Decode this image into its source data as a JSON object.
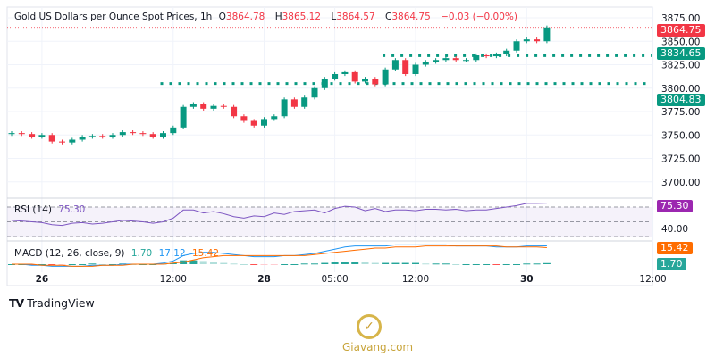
{
  "header": {
    "title": "Gold US Dollars per Ounce Spot Prices, 1h",
    "o_label": "O",
    "o": "3864.78",
    "h_label": "H",
    "h": "3865.12",
    "l_label": "L",
    "l": "3864.57",
    "c_label": "C",
    "c": "3864.75",
    "change": "−0.03 (−0.00%)"
  },
  "price_tags": {
    "last": "3864.75",
    "level1": "3834.65",
    "level2": "3804.83"
  },
  "rsi": {
    "label": "RSI (14)",
    "value": "75.30",
    "axis_label": "40.00"
  },
  "macd": {
    "label": "MACD (12, 26, close, 9)",
    "hist": "1.70",
    "macd": "17.12",
    "signal": "15.42"
  },
  "branding": {
    "tradingview": "TradingView",
    "watermark": "Giavang.com"
  },
  "colors": {
    "up": "#089981",
    "down": "#f23645",
    "rsi": "#7e57c2",
    "macd": "#2962ff",
    "signal": "#ff6d00"
  },
  "chart_data": {
    "type": "candlestick",
    "title": "Gold US Dollars per Ounce Spot Prices, 1h",
    "ylim": [
      3690,
      3880
    ],
    "yticks": [
      "3875.00",
      "3850.00",
      "3825.00",
      "3800.00",
      "3775.00",
      "3750.00",
      "3725.00",
      "3700.00"
    ],
    "ytick_values": [
      3875,
      3850,
      3825,
      3800,
      3775,
      3750,
      3725,
      3700
    ],
    "xticks": [
      "26",
      "12:00",
      "28",
      "05:00",
      "12:00",
      "30",
      "12:00"
    ],
    "xtick_index": [
      3,
      16,
      25,
      32,
      40,
      51,
      63.5
    ],
    "closes": [
      3752,
      3751,
      3748,
      3750,
      3743,
      3742,
      3745,
      3748,
      3749,
      3748,
      3750,
      3753,
      3752,
      3751,
      3748,
      3752,
      3758,
      3780,
      3783,
      3778,
      3781,
      3780,
      3770,
      3765,
      3760,
      3767,
      3770,
      3788,
      3780,
      3790,
      3800,
      3810,
      3815,
      3817,
      3807,
      3810,
      3804,
      3820,
      3830,
      3815,
      3825,
      3828,
      3830,
      3832,
      3830,
      3830,
      3835,
      3834,
      3836,
      3840,
      3850,
      3852,
      3850,
      3864.75
    ],
    "open_first": 3751,
    "levels": [
      {
        "value": 3834.65,
        "start_index": 37
      },
      {
        "value": 3804.83,
        "start_index": 15
      }
    ],
    "rsi_values": [
      52,
      51,
      50,
      49,
      46,
      45,
      48,
      49,
      47,
      48,
      50,
      52,
      51,
      50,
      48,
      50,
      55,
      66,
      66,
      62,
      64,
      61,
      57,
      55,
      58,
      57,
      62,
      60,
      64,
      65,
      66,
      62,
      68,
      71,
      70,
      65,
      68,
      64,
      66,
      66,
      65,
      67,
      67,
      66,
      67,
      65,
      66,
      66,
      68,
      70,
      72,
      75,
      75,
      75.3
    ],
    "rsi_levels": [
      70,
      50,
      30
    ],
    "macd_values": [
      0,
      0,
      -1,
      -1,
      -2,
      -2,
      -2,
      -2,
      -1,
      -1,
      -1,
      0,
      0,
      0,
      0,
      1,
      3,
      8,
      10,
      11,
      11,
      10,
      9,
      8,
      7,
      7,
      7,
      8,
      8,
      9,
      10,
      12,
      14,
      16,
      17,
      17,
      17,
      17,
      18,
      18,
      18,
      18,
      18,
      18,
      17,
      17,
      17,
      17,
      16,
      16,
      16,
      17,
      17,
      17.12
    ],
    "signal_values": [
      0,
      0,
      0,
      -1,
      -1,
      -1,
      -2,
      -2,
      -2,
      -1,
      -1,
      -1,
      0,
      0,
      0,
      0,
      1,
      2,
      4,
      6,
      7,
      8,
      8,
      8,
      8,
      8,
      8,
      8,
      8,
      8,
      9,
      10,
      11,
      12,
      13,
      14,
      15,
      15,
      16,
      16,
      16,
      17,
      17,
      17,
      17,
      17,
      17,
      17,
      17,
      16,
      16,
      16,
      16,
      15.42
    ]
  }
}
